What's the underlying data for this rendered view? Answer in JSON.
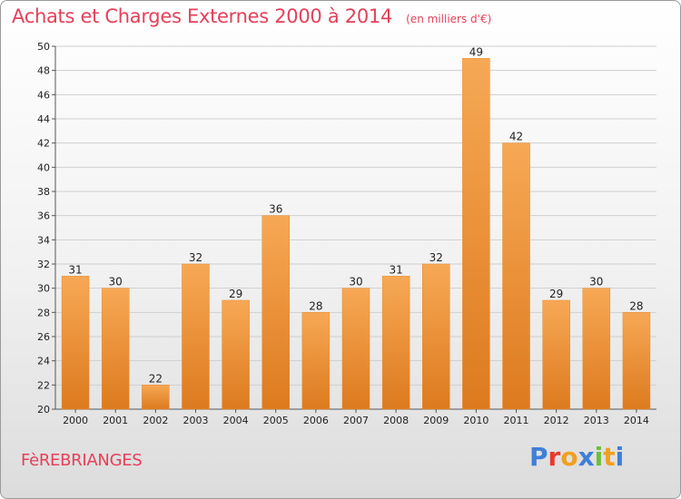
{
  "header": {
    "title": "Achats et Charges Externes 2000 à 2014",
    "subtitle": "(en milliers d'€)"
  },
  "footer": {
    "town": "FèREBRIANGES",
    "logo_text": "Proxiti",
    "logo_colors": [
      "#3f7fd8",
      "#e8392e",
      "#f0a020",
      "#3f7fd8",
      "#6cbf3a",
      "#f0a020",
      "#3f7fd8"
    ]
  },
  "colors": {
    "bar_top": "#f7a855",
    "bar_bottom": "#dd7a1e",
    "grid": "#cfcfcf",
    "text": "#222222",
    "title": "#e4405a"
  },
  "chart_data": {
    "type": "bar",
    "categories": [
      "2000",
      "2001",
      "2002",
      "2003",
      "2004",
      "2005",
      "2006",
      "2007",
      "2008",
      "2009",
      "2010",
      "2011",
      "2012",
      "2013",
      "2014"
    ],
    "values": [
      31,
      30,
      22,
      32,
      29,
      36,
      28,
      30,
      31,
      32,
      49,
      42,
      29,
      30,
      28
    ],
    "ylim": [
      20,
      50
    ],
    "yticks": [
      20,
      22,
      24,
      26,
      28,
      30,
      32,
      34,
      36,
      38,
      40,
      42,
      44,
      46,
      48,
      50
    ],
    "grid": true,
    "data_labels": true
  }
}
